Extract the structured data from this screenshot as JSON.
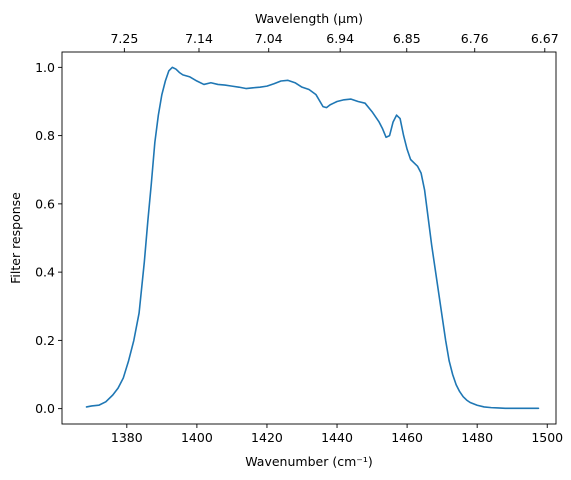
{
  "chart_data": {
    "type": "line",
    "title": "",
    "xlabel": "Wavenumber (cm⁻¹)",
    "ylabel": "Filter response",
    "top_xlabel": "Wavelength (μm)",
    "xlim": [
      1361.5,
      1502.5
    ],
    "ylim": [
      -0.045,
      1.045
    ],
    "xticks": [
      {
        "value": 1380,
        "label": "1380"
      },
      {
        "value": 1400,
        "label": "1400"
      },
      {
        "value": 1420,
        "label": "1420"
      },
      {
        "value": 1440,
        "label": "1440"
      },
      {
        "value": 1460,
        "label": "1460"
      },
      {
        "value": 1480,
        "label": "1480"
      },
      {
        "value": 1500,
        "label": "1500"
      }
    ],
    "yticks": [
      {
        "value": 0.0,
        "label": "0.0"
      },
      {
        "value": 0.2,
        "label": "0.2"
      },
      {
        "value": 0.4,
        "label": "0.4"
      },
      {
        "value": 0.6,
        "label": "0.6"
      },
      {
        "value": 0.8,
        "label": "0.8"
      },
      {
        "value": 1.0,
        "label": "1.0"
      }
    ],
    "top_xticks": [
      {
        "value": 1379.3,
        "label": "7.25"
      },
      {
        "value": 1400.6,
        "label": "7.14"
      },
      {
        "value": 1420.5,
        "label": "7.04"
      },
      {
        "value": 1440.9,
        "label": "6.94"
      },
      {
        "value": 1459.9,
        "label": "6.85"
      },
      {
        "value": 1479.3,
        "label": "6.76"
      },
      {
        "value": 1499.3,
        "label": "6.67"
      }
    ],
    "grid": false,
    "line_color": "#1f77b4",
    "series": [
      {
        "name": "",
        "x": [
          1368.5,
          1370,
          1372,
          1374,
          1376,
          1377.5,
          1379,
          1380.5,
          1382,
          1383.5,
          1385,
          1386,
          1387,
          1388,
          1389,
          1390,
          1391,
          1392,
          1393,
          1394,
          1395,
          1396,
          1397,
          1398,
          1400,
          1402,
          1404,
          1406,
          1408,
          1410,
          1412,
          1414,
          1416,
          1418,
          1420,
          1422,
          1424,
          1426,
          1428,
          1430,
          1432,
          1434,
          1436,
          1437,
          1438,
          1439,
          1440,
          1442,
          1444,
          1446,
          1448,
          1450,
          1452,
          1453,
          1454,
          1455,
          1456,
          1457,
          1458,
          1459,
          1460,
          1461,
          1462,
          1463,
          1464,
          1465,
          1466,
          1467,
          1468,
          1469,
          1470,
          1471,
          1472,
          1473,
          1474,
          1475,
          1476,
          1477,
          1478,
          1480,
          1482,
          1484,
          1486,
          1488,
          1490,
          1492,
          1494,
          1496,
          1497.5
        ],
        "y": [
          0.005,
          0.008,
          0.01,
          0.02,
          0.04,
          0.06,
          0.09,
          0.14,
          0.2,
          0.28,
          0.43,
          0.55,
          0.66,
          0.78,
          0.86,
          0.92,
          0.96,
          0.99,
          1.0,
          0.995,
          0.985,
          0.978,
          0.975,
          0.972,
          0.96,
          0.95,
          0.955,
          0.95,
          0.948,
          0.945,
          0.942,
          0.938,
          0.94,
          0.942,
          0.945,
          0.952,
          0.96,
          0.962,
          0.955,
          0.942,
          0.935,
          0.92,
          0.885,
          0.882,
          0.89,
          0.895,
          0.9,
          0.905,
          0.907,
          0.9,
          0.895,
          0.87,
          0.84,
          0.82,
          0.795,
          0.8,
          0.84,
          0.86,
          0.85,
          0.8,
          0.76,
          0.73,
          0.72,
          0.71,
          0.69,
          0.64,
          0.56,
          0.48,
          0.41,
          0.34,
          0.27,
          0.2,
          0.14,
          0.1,
          0.07,
          0.05,
          0.035,
          0.025,
          0.018,
          0.01,
          0.005,
          0.003,
          0.002,
          0.001,
          0.001,
          0.001,
          0.001,
          0.001,
          0.001
        ]
      }
    ]
  }
}
